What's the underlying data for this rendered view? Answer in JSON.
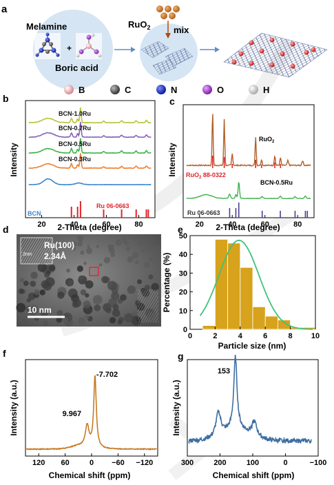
{
  "panel_a": {
    "letter": "a",
    "melamine": "Melamine",
    "plus": "+",
    "boric_acid": "Boric acid",
    "ruo2_main": "RuO",
    "ruo2_sub": "2",
    "mix": "mix",
    "legend": [
      {
        "symbol": "B",
        "color": "#e9a3a8"
      },
      {
        "symbol": "C",
        "color": "#666666"
      },
      {
        "symbol": "N",
        "color": "#1a2fc8"
      },
      {
        "symbol": "O",
        "color": "#a03ac8"
      },
      {
        "symbol": "H",
        "color": "#dddddd"
      }
    ]
  },
  "chart_data": [
    {
      "id": "b",
      "type": "line",
      "panel_letter": "b",
      "xlabel": "2-Theta (degree)",
      "ylabel": "Intensity",
      "xlim": [
        10,
        90
      ],
      "xticks": [
        20,
        40,
        60,
        80
      ],
      "series": [
        {
          "name": "BCN-1.0Ru",
          "color": "#b7c43a"
        },
        {
          "name": "BCN-0.7Ru",
          "color": "#8a62b4"
        },
        {
          "name": "BCN-0.5Ru",
          "color": "#3fb24a"
        },
        {
          "name": "BCN-0.3Ru",
          "color": "#f07f2c"
        },
        {
          "name": "BCN",
          "color": "#3a86c9"
        }
      ],
      "reference": {
        "name": "Ru 06-0663",
        "color": "#e0242c",
        "peaks": [
          38.4,
          42.2,
          44.0,
          58.3,
          69.4,
          78.4,
          84.7,
          85.9
        ]
      }
    },
    {
      "id": "c",
      "type": "line",
      "panel_letter": "c",
      "xlabel": "2-Theta (degree)",
      "ylabel": "Intensity",
      "xlim": [
        10,
        90
      ],
      "xticks": [
        20,
        40,
        60,
        80
      ],
      "series": [
        {
          "name": "RuO",
          "name_sub": "2",
          "color": "#b25e28"
        },
        {
          "name": "BCN-0.5Ru",
          "color": "#3fb24a"
        }
      ],
      "references": [
        {
          "name": "RuO",
          "name_sub": "2",
          "name_rest": " 88-0322",
          "color": "#e0242c",
          "peaks": [
            28.0,
            35.1,
            40.0,
            54.3,
            57.9,
            66.0,
            69.5
          ]
        },
        {
          "name": "Ru 06-0663",
          "color": "#4b3d8f",
          "peaks": [
            38.4,
            42.2,
            44.0,
            58.3,
            69.4,
            78.4,
            84.7,
            85.9
          ]
        }
      ]
    },
    {
      "id": "e",
      "type": "bar",
      "panel_letter": "e",
      "xlabel": "Particle size (nm)",
      "ylabel": "Percentage (%)",
      "xlim": [
        0,
        10
      ],
      "ylim": [
        0,
        50
      ],
      "xticks": [
        0,
        2,
        4,
        6,
        8,
        10
      ],
      "yticks": [
        0,
        10,
        20,
        30,
        40,
        50
      ],
      "bin_centers": [
        1.5,
        2.5,
        3.5,
        4.5,
        5.5,
        6.5,
        7.5,
        8.5,
        9.5
      ],
      "values": [
        2,
        48,
        46,
        33,
        12,
        7,
        5,
        1,
        1
      ],
      "fit": {
        "type": "gaussian",
        "mean": 3.9,
        "peak": 47.5,
        "sigma": 1.6
      },
      "bar_color": "#d7a21c",
      "fit_color": "#3fc27a"
    },
    {
      "id": "f",
      "type": "line",
      "panel_letter": "f",
      "xlabel": "Chemical shift (ppm)",
      "ylabel": "Intensity (a.u.)",
      "xlim": [
        150,
        -150
      ],
      "xticks": [
        120,
        60,
        0,
        -60,
        -120
      ],
      "color": "#c77a24",
      "peak_labels": [
        {
          "x": -7.702,
          "text": "-7.702"
        },
        {
          "x": 9.967,
          "text": "9.967"
        }
      ]
    },
    {
      "id": "g",
      "type": "line",
      "panel_letter": "g",
      "xlabel": "Chemical shift (ppm)",
      "ylabel": "Intensity (a.u.)",
      "xlim": [
        300,
        -100
      ],
      "xticks": [
        300,
        200,
        100,
        0,
        -100
      ],
      "color": "#3c6ea3",
      "peak_labels": [
        {
          "x": 153,
          "text": "153"
        }
      ]
    }
  ],
  "panel_d": {
    "letter": "d",
    "ru_plane": "Ru(100)",
    "d_spacing": "2.34Å",
    "inset_scale": "2nm",
    "scale_bar": "10 nm"
  }
}
